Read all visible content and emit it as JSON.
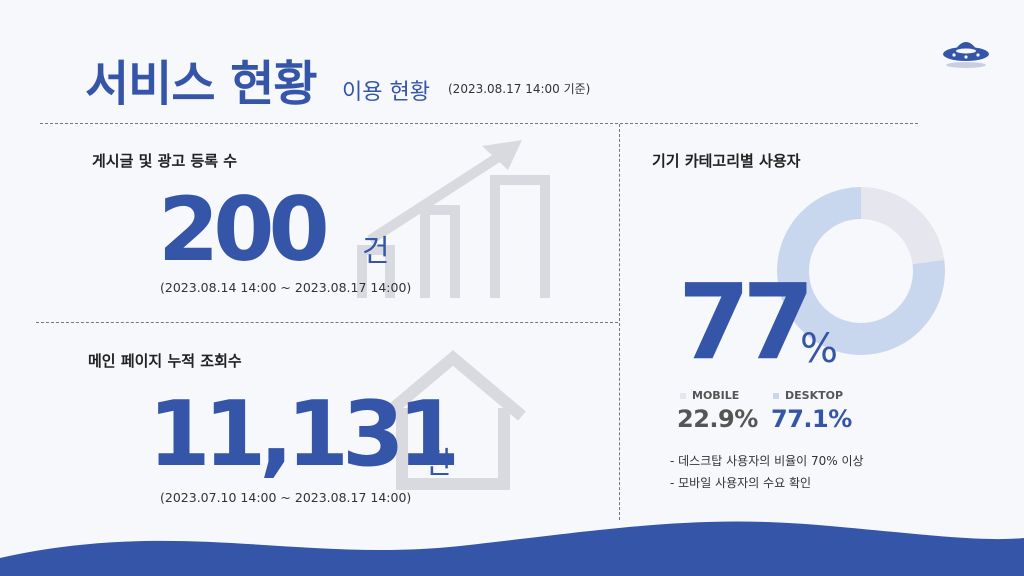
{
  "header": {
    "title": "서비스 현황",
    "subtitle": "이용 현황",
    "date_note": "(2023.08.17 14:00 기준)"
  },
  "posts": {
    "label": "게시글 및 광고 등록 수",
    "value": "200",
    "unit": "건",
    "period": "(2023.08.14 14:00 ~ 2023.08.17 14:00)"
  },
  "views": {
    "label": "메인 페이지 누적 조회수",
    "value": "11,131",
    "unit": "건",
    "period": "(2023.07.10 14:00 ~ 2023.08.17 14:00)"
  },
  "devices": {
    "label": "기기 카테고리별 사용자",
    "big_value": "77",
    "big_unit": "%",
    "legend": [
      {
        "name": "MOBILE",
        "display": "22.9%",
        "color": "#e6e7ee"
      },
      {
        "name": "DESKTOP",
        "display": "77.1%",
        "color": "#c9d7ee"
      }
    ],
    "notes": [
      "- 데스크탑 사용자의 비율이 70% 이상",
      "- 모바일 사용자의 수요 확인"
    ]
  },
  "chart_data": {
    "type": "pie",
    "categories": [
      "MOBILE",
      "DESKTOP"
    ],
    "values": [
      22.9,
      77.1
    ],
    "title": "기기 카테고리별 사용자",
    "colors": [
      "#e6e7ee",
      "#c9d7ee"
    ]
  },
  "colors": {
    "accent": "#3556a8",
    "wave": "#3556a8",
    "background": "#f7f8fc"
  },
  "icons": [
    "ufo-icon",
    "growth-chart-icon",
    "house-icon"
  ]
}
